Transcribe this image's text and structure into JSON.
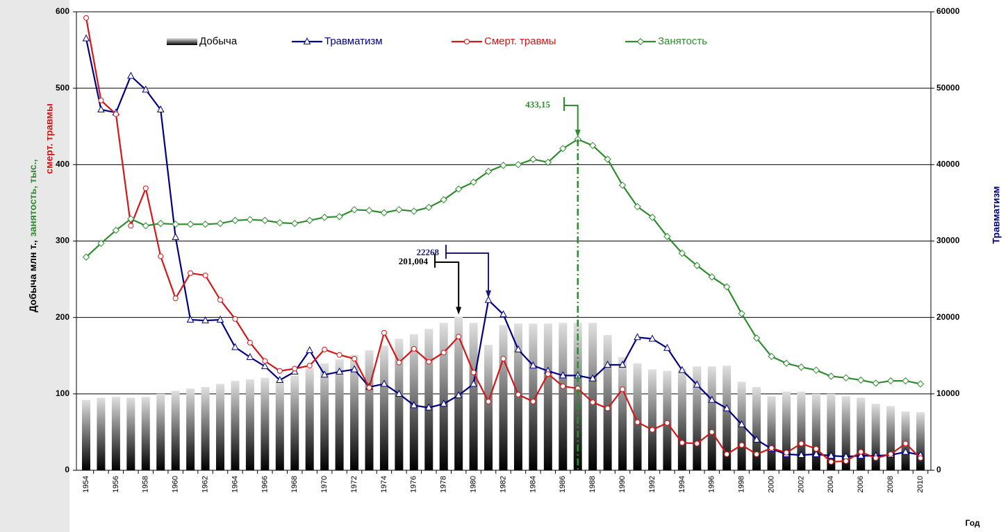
{
  "chart_data": {
    "type": "bar-line",
    "categories": [
      "1954",
      null,
      "1956",
      null,
      "1958",
      null,
      "1960",
      null,
      "1962",
      null,
      "1964",
      null,
      "1966",
      null,
      "1968",
      null,
      "1970",
      null,
      "1972",
      null,
      "1974",
      null,
      "1976",
      null,
      "1978",
      null,
      "1980",
      null,
      "1982",
      null,
      "1984",
      null,
      "1986",
      null,
      "1988",
      null,
      "1990",
      null,
      "1992",
      null,
      "1994",
      null,
      "1996",
      null,
      "1998",
      null,
      "2000",
      null,
      "2002",
      null,
      "2004",
      null,
      "2006",
      null,
      "2008",
      null,
      "2010"
    ],
    "series": [
      {
        "name": "Добыча",
        "type": "bar",
        "color": "#7a7a7a",
        "values": [
          92,
          95,
          96,
          95,
          96,
          100,
          104,
          107,
          109,
          113,
          117,
          119,
          121,
          118,
          124,
          134,
          140,
          145,
          151,
          157,
          163,
          172,
          178,
          185,
          193,
          201.004,
          193,
          164,
          190,
          192,
          192,
          192,
          193,
          193,
          193,
          177,
          148,
          140,
          132,
          130,
          133,
          136,
          136,
          137,
          116,
          109,
          97,
          103,
          103,
          100,
          100,
          97,
          95,
          87,
          84,
          77,
          76
        ]
      },
      {
        "name": "Травматизм",
        "type": "line",
        "axis": "y2",
        "color": "#000080",
        "marker": "triangle",
        "values": [
          56500,
          47200,
          46800,
          51600,
          49800,
          47200,
          30500,
          19700,
          19600,
          19700,
          16100,
          14800,
          13600,
          11800,
          12900,
          15700,
          12500,
          12900,
          13200,
          10900,
          11300,
          10000,
          8500,
          8200,
          8700,
          9800,
          11300,
          22268,
          20400,
          15800,
          13700,
          13000,
          12400,
          12400,
          12000,
          13800,
          13800,
          17400,
          17200,
          16000,
          13100,
          11200,
          9200,
          8100,
          6000,
          4000,
          2800,
          2100,
          2000,
          2100,
          1900,
          1800,
          1900,
          1900,
          2000,
          2400,
          2000
        ]
      },
      {
        "name": "Смерт. травмы",
        "type": "line",
        "color": "#d01818",
        "marker": "circle",
        "values": [
          592,
          484,
          466,
          320,
          369,
          280,
          225,
          258,
          255,
          223,
          198,
          167,
          143,
          130,
          133,
          137,
          158,
          151,
          146,
          108,
          180,
          141,
          159,
          142,
          154,
          175,
          128,
          90,
          146,
          99,
          90,
          126,
          110,
          107,
          89,
          81,
          106,
          63,
          53,
          62,
          36,
          35,
          50,
          21,
          33,
          21,
          29,
          23,
          35,
          28,
          11,
          12,
          24,
          16,
          21,
          35,
          16
        ]
      },
      {
        "name": "Занятость",
        "type": "line",
        "color": "#2e8b2e",
        "marker": "diamond",
        "values": [
          279,
          297,
          314,
          329,
          320,
          323,
          322,
          322,
          322,
          323,
          327,
          328,
          327,
          324,
          323,
          327,
          331,
          332,
          341,
          340,
          337,
          341,
          339,
          344,
          354,
          368,
          377,
          391,
          399,
          400,
          407,
          403,
          421,
          433.15,
          425,
          407,
          373,
          345,
          331,
          306,
          284,
          268,
          253,
          240,
          205,
          173,
          149,
          140,
          135,
          131,
          123,
          121,
          118,
          114,
          117,
          117,
          113
        ]
      }
    ],
    "ylim": [
      0,
      600
    ],
    "yticks": [
      0,
      100,
      200,
      300,
      400,
      500,
      600
    ],
    "y2lim": [
      0,
      60000
    ],
    "y2ticks": [
      0,
      10000,
      20000,
      30000,
      40000,
      50000,
      60000
    ],
    "grid": true,
    "legend": "top",
    "y_label_parts": [
      {
        "text": "Добыча млн т.,",
        "color": "#000000"
      },
      {
        "text": "занятость, тыс.,",
        "color": "#2e8b2e"
      },
      {
        "text": "смерт. травмы",
        "color": "#d01818"
      }
    ],
    "y2_label": "Травматизм",
    "y2_label_color": "#000080",
    "x_label": "Год",
    "annotations": [
      "433,15",
      "22268",
      "201,004"
    ]
  }
}
